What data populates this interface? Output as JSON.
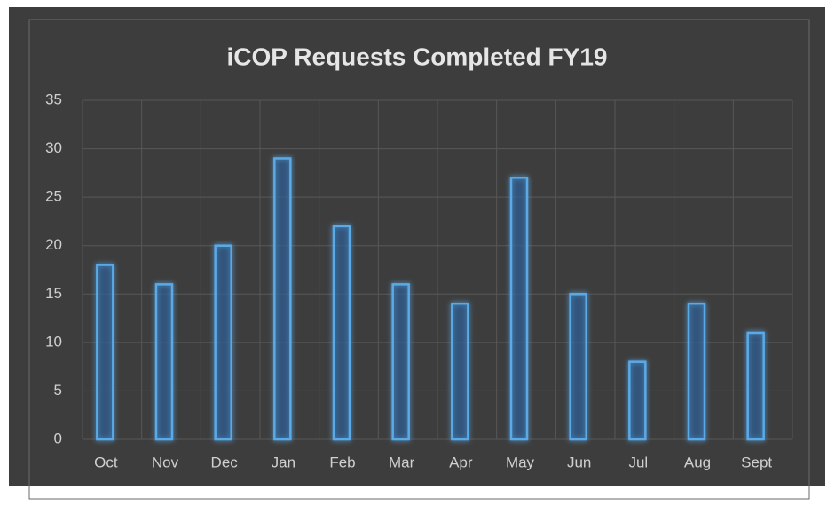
{
  "chart_data": {
    "type": "bar",
    "title": "iCOP Requests Completed FY19",
    "categories": [
      "Oct",
      "Nov",
      "Dec",
      "Jan",
      "Feb",
      "Mar",
      "Apr",
      "May",
      "Jun",
      "Jul",
      "Aug",
      "Sept"
    ],
    "values": [
      18,
      16,
      20,
      29,
      22,
      16,
      14,
      27,
      15,
      8,
      14,
      11
    ],
    "color": "#5aaae8",
    "ylim": [
      0,
      35
    ],
    "yticks": [
      0,
      5,
      10,
      15,
      20,
      25,
      30,
      35
    ],
    "grid": true
  }
}
